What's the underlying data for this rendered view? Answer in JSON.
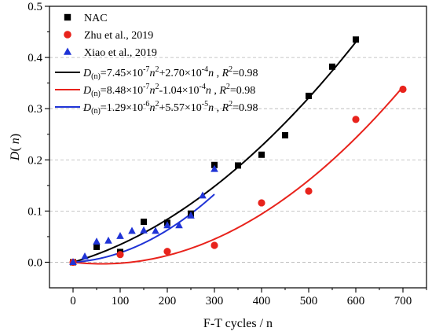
{
  "chart_data": {
    "type": "scatter",
    "xlabel": "F-T cycles / n",
    "ylabel_main": "D",
    "ylabel_paren": "(n)",
    "xlim": [
      -50,
      750
    ],
    "ylim": [
      -0.05,
      0.5
    ],
    "x_ticks": [
      0,
      100,
      200,
      300,
      400,
      500,
      600,
      700
    ],
    "y_ticks": [
      0.0,
      0.1,
      0.2,
      0.3,
      0.4,
      0.5
    ],
    "y_tick_labels": [
      "0.0",
      "0.1",
      "0.2",
      "0.3",
      "0.4",
      "0.5"
    ],
    "grid": "horizontal-dashed",
    "legend_position": "top-left",
    "series": [
      {
        "name": "NAC",
        "marker": "square",
        "color": "#000000",
        "points": [
          [
            0,
            0.0
          ],
          [
            50,
            0.03
          ],
          [
            100,
            0.02
          ],
          [
            150,
            0.079
          ],
          [
            200,
            0.077
          ],
          [
            250,
            0.095
          ],
          [
            300,
            0.19
          ],
          [
            350,
            0.189
          ],
          [
            400,
            0.21
          ],
          [
            450,
            0.248
          ],
          [
            500,
            0.325
          ],
          [
            550,
            0.382
          ],
          [
            600,
            0.435
          ]
        ]
      },
      {
        "name": "Zhu et al., 2019",
        "marker": "circle",
        "color": "#e8231c",
        "points": [
          [
            0,
            0.0
          ],
          [
            100,
            0.015
          ],
          [
            200,
            0.021
          ],
          [
            300,
            0.033
          ],
          [
            400,
            0.116
          ],
          [
            500,
            0.139
          ],
          [
            600,
            0.279
          ],
          [
            700,
            0.338
          ]
        ]
      },
      {
        "name": "Xiao et al., 2019",
        "marker": "triangle",
        "color": "#1f33d6",
        "points": [
          [
            0,
            0.0
          ],
          [
            25,
            0.011
          ],
          [
            50,
            0.04
          ],
          [
            75,
            0.042
          ],
          [
            100,
            0.051
          ],
          [
            125,
            0.061
          ],
          [
            150,
            0.062
          ],
          [
            175,
            0.061
          ],
          [
            200,
            0.072
          ],
          [
            225,
            0.072
          ],
          [
            250,
            0.091
          ],
          [
            275,
            0.13
          ],
          [
            300,
            0.182
          ]
        ]
      }
    ],
    "fits": [
      {
        "for": "NAC",
        "color": "#000000",
        "a": 7.45e-07,
        "b": 0.00027,
        "c": 0,
        "x_range": [
          0,
          600
        ],
        "label_prefix": "D",
        "label_sub": "(n)",
        "label_a": "=7.45×10",
        "label_a_exp": "-7",
        "label_b": "+2.70×10",
        "label_b_exp": "-4",
        "label_r2": "=0.98"
      },
      {
        "for": "Zhu et al., 2019",
        "color": "#e8231c",
        "a": 8.48e-07,
        "b": -0.000104,
        "c": 0,
        "x_range": [
          0,
          700
        ],
        "label_prefix": "D",
        "label_sub": "(n)",
        "label_a": "=8.48×10",
        "label_a_exp": "-7",
        "label_b": "-1.04×10",
        "label_b_exp": "-4",
        "label_r2": "=0.98"
      },
      {
        "for": "Xiao et al., 2019",
        "color": "#1f33d6",
        "a": 1.29e-06,
        "b": 5.57e-05,
        "c": 0,
        "x_range": [
          0,
          300
        ],
        "label_prefix": "D",
        "label_sub": "(n)",
        "label_a": "=1.29×10",
        "label_a_exp": "-6",
        "label_b": "+5.57×10",
        "label_b_exp": "-5",
        "label_r2": "=0.98"
      }
    ]
  }
}
